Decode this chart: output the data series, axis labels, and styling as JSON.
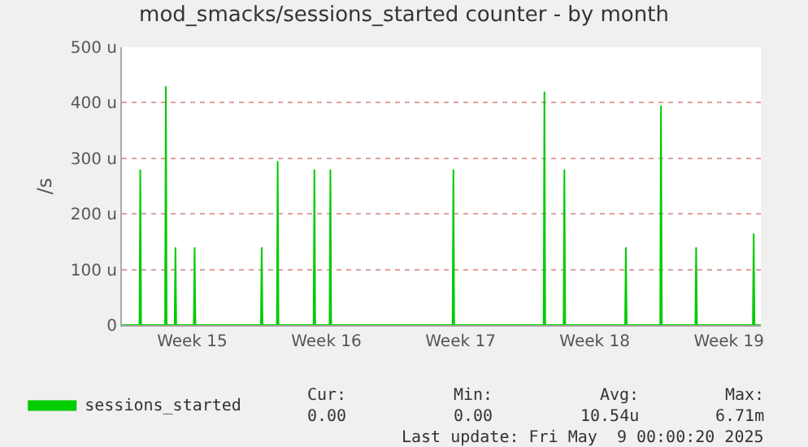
{
  "chart_data": {
    "type": "area",
    "title": "mod_smacks/sessions_started counter - by month",
    "ylabel": "/s",
    "x": [
      "2025-04-05T20:00",
      "2025-04-06T18:00",
      "2025-04-06T19:00",
      "2025-04-06T20:00",
      "2025-04-08T02:00",
      "2025-04-08T03:00",
      "2025-04-08T04:00",
      "2025-04-08T14:00",
      "2025-04-08T15:00",
      "2025-04-08T16:00",
      "2025-04-09T14:00",
      "2025-04-09T15:00",
      "2025-04-09T16:00",
      "2025-04-13T02:00",
      "2025-04-13T03:00",
      "2025-04-13T04:00",
      "2025-04-13T22:00",
      "2025-04-13T23:00",
      "2025-04-14T00:00",
      "2025-04-15T20:00",
      "2025-04-15T21:00",
      "2025-04-15T22:00",
      "2025-04-16T16:00",
      "2025-04-16T17:00",
      "2025-04-16T18:00",
      "2025-04-23T02:00",
      "2025-04-23T03:00",
      "2025-04-23T04:00",
      "2025-04-27T20:00",
      "2025-04-27T21:00",
      "2025-04-27T22:00",
      "2025-04-28T21:00",
      "2025-04-28T22:00",
      "2025-04-28T23:00",
      "2025-05-02T02:00",
      "2025-05-02T03:00",
      "2025-05-02T04:00",
      "2025-05-03T22:00",
      "2025-05-03T23:00",
      "2025-05-04T00:00",
      "2025-05-05T18:00",
      "2025-05-05T19:00",
      "2025-05-05T20:00",
      "2025-05-08T18:00",
      "2025-05-08T19:00",
      "2025-05-08T20:00",
      "2025-05-09T04:00"
    ],
    "series": [
      {
        "name": "sessions_started",
        "color": "#00cc00",
        "values": [
          0,
          0,
          280,
          0,
          0,
          430,
          0,
          0,
          140,
          0,
          0,
          140,
          0,
          0,
          140,
          0,
          0,
          295,
          0,
          0,
          280,
          0,
          0,
          280,
          0,
          0,
          280,
          0,
          0,
          420,
          0,
          0,
          280,
          0,
          0,
          140,
          0,
          0,
          395,
          0,
          0,
          140,
          0,
          0,
          165,
          0,
          0
        ]
      }
    ],
    "xlim": [
      "2025-04-05T20:00",
      "2025-05-09T04:00"
    ],
    "xticks": [
      {
        "value": "2025-04-09T12:00",
        "label": "Week 15"
      },
      {
        "value": "2025-04-16T12:00",
        "label": "Week 16"
      },
      {
        "value": "2025-04-23T12:00",
        "label": "Week 17"
      },
      {
        "value": "2025-04-30T12:00",
        "label": "Week 18"
      },
      {
        "value": "2025-05-07T12:00",
        "label": "Week 19"
      }
    ],
    "ylim": [
      0,
      500
    ],
    "yticks": [
      {
        "value": 0,
        "label": "0"
      },
      {
        "value": 100,
        "label": "100 u"
      },
      {
        "value": 200,
        "label": "200 u"
      },
      {
        "value": 300,
        "label": "300 u"
      },
      {
        "value": 400,
        "label": "400 u"
      },
      {
        "value": 500,
        "label": "500 u"
      }
    ],
    "grid": "y",
    "legend": "bottom left",
    "annotations": [
      "Cur:",
      "Min:",
      "Avg:",
      "Max:",
      "0.00",
      "0.00",
      "10.54u",
      "6.71m",
      "Last update: Fri May  9 00:00:20 2025"
    ]
  }
}
